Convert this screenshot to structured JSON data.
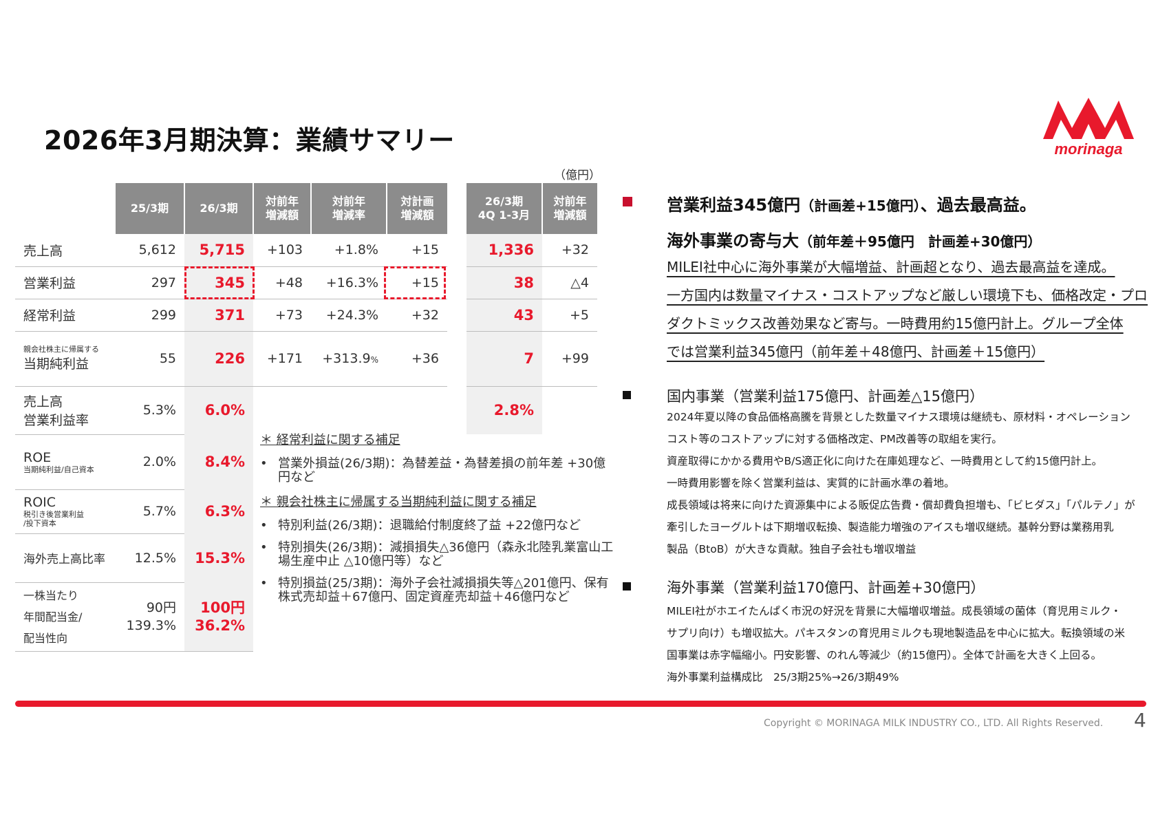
{
  "title": "2026年3月期決算：業績サマリー",
  "unit": "（億円）",
  "logo_text": "morinaga",
  "table": {
    "headers": [
      "25/3期",
      "26/3期",
      "対前年\n増減額",
      "対前年\n増減率",
      "対計画\n増減額"
    ],
    "q4_headers": [
      "26/3期\n4Q 1-3月",
      "対前年\n増減額"
    ],
    "rows": {
      "sales": {
        "label": "売上高",
        "v1": "5,612",
        "v2": "5,715",
        "yoy": "+103",
        "yoyr": "+1.8%",
        "plan": "+15",
        "q4": "1,336",
        "q4yoy": "+32"
      },
      "op": {
        "label": "営業利益",
        "v1": "297",
        "v2": "345",
        "yoy": "+48",
        "yoyr": "+16.3%",
        "plan": "+15",
        "q4": "38",
        "q4yoy": "△4"
      },
      "ordinary": {
        "label": "経常利益",
        "v1": "299",
        "v2": "371",
        "yoy": "+73",
        "yoyr": "+24.3%",
        "plan": "+32",
        "q4": "43",
        "q4yoy": "+5"
      },
      "net": {
        "label_small": "親会社株主に帰属する",
        "label": "当期純利益",
        "v1": "55",
        "v2": "226",
        "yoy": "+171",
        "yoyr": "+313.9",
        "yoyr_unit": "%",
        "plan": "+36",
        "q4": "7",
        "q4yoy": "+99"
      },
      "margin": {
        "label1": "売上高",
        "label2": "営業利益率",
        "v1": "5.3%",
        "v2": "6.0%",
        "q4": "2.8%"
      },
      "roe": {
        "label": "ROE",
        "sub": "当期純利益/自己資本",
        "v1": "2.0%",
        "v2": "8.4%"
      },
      "roic": {
        "label": "ROIC",
        "sub1": "税引き後営業利益",
        "sub2": "/投下資本",
        "v1": "5.7%",
        "v2": "6.3%"
      },
      "overseas": {
        "label": "海外売上高比率",
        "v1": "12.5%",
        "v2": "15.3%"
      },
      "dividend": {
        "label1": "一株当たり",
        "label2": "年間配当金/",
        "label3": "配当性向",
        "v1a": "90円",
        "v1b": "139.3%",
        "v2a": "100円",
        "v2b": "36.2%"
      }
    }
  },
  "notes": {
    "h1": "＊ 経常利益に関する補足",
    "items1": [
      "営業外損益(26/3期)：為替差益・為替差損の前年差 +30億円など"
    ],
    "h2": "＊ 親会社株主に帰属する当期純利益に関する補足",
    "items2": [
      "特別利益(26/3期)：退職給付制度終了益 +22億円など",
      "特別損失(26/3期)：減損損失△36億円（森永北陸乳業富山工場生産中止 △10億円等）など",
      "特別損益(25/3期)：海外子会社減損損失等△201億円、保有株式売却益＋67億円、固定資産売却益＋46億円など"
    ]
  },
  "right": {
    "h1a": "営業利益345億円",
    "h1a_sub": "（計画差+15億円）",
    "h1a_tail": "、過去最高益。",
    "h1b": "海外事業の寄与大",
    "h1b_sub": "（前年差＋95億円　計画差+30億円）",
    "lines": [
      "MILEI社中心に海外事業が大幅増益、計画超となり、過去最高益を達成。",
      "一方国内は数量マイナス・コストアップなど厳しい環境下も、価格改定・プロ",
      "ダクトミックス改善効果など寄与。一時費用約15億円計上。グループ全体",
      "では営業利益345億円（前年差＋48億円、計画差＋15億円）"
    ],
    "domestic_title": "国内事業（営業利益175億円、計画差△15億円）",
    "domestic_lines": [
      "2024年夏以降の食品価格高騰を背景とした数量マイナス環境は継続も、原材料・オペレーション",
      "コスト等のコストアップに対する価格改定、PM改善等の取組を実行。",
      "資産取得にかかる費用やB/S適正化に向けた在庫処理など、一時費用として約15億円計上。",
      "一時費用影響を除く営業利益は、実質的に計画水準の着地。",
      "成長領域は将来に向けた資源集中による販促広告費・償却費負担増も、「ビヒダス」「パルテノ」が",
      "牽引したヨーグルトは下期増収転換、製造能力増強のアイスも増収継続。基幹分野は業務用乳",
      "製品（BtoB）が大きな貢献。独自子会社も増収増益"
    ],
    "overseas_title": "海外事業（営業利益170億円、計画差+30億円）",
    "overseas_lines": [
      "MILEI社がホエイたんぱく市況の好況を背景に大幅増収増益。成長領域の菌体（育児用ミルク・",
      "サプリ向け）も増収拡大。パキスタンの育児用ミルクも現地製造品を中心に拡大。転換領域の米",
      "国事業は赤字幅縮小。円安影響、のれん等減少（約15億円）。全体で計画を大きく上回る。",
      "海外事業利益構成比　25/3期25%→26/3期49%"
    ]
  },
  "footer": {
    "copyright": "Copyright © MORINAGA MILK INDUSTRY CO., LTD. All Rights Reserved.",
    "page": "4"
  },
  "colors": {
    "accent": "#e8192c",
    "header_gray": "#8c8c8c",
    "bullet_red": "#c8102e"
  }
}
